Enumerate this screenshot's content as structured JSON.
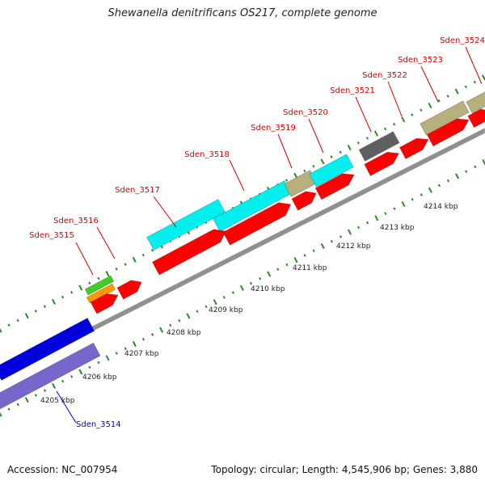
{
  "title": "Shewanella denitrificans OS217, complete genome",
  "footer": {
    "accession": "Accession: NC_007954",
    "summary": "Topology: circular; Length: 4,545,906 bp; Genes: 3,880"
  },
  "colors": {
    "forward_label": "#d40000",
    "reverse_label": "#0000c0",
    "backbone": "#909090",
    "tick": "#2a8a2a",
    "cds": "#ff0000",
    "feature_cyan": "#00f0f0",
    "feature_tan": "#b8b07c",
    "feature_gray": "#606060",
    "feature_green": "#44cc22",
    "feature_orange": "#ff9900",
    "feature_blue": "#0000dd",
    "feature_purple": "#7766cc"
  },
  "ruler": {
    "ticks": [
      "4205 kbp",
      "4206 kbp",
      "4207 kbp",
      "4208 kbp",
      "4209 kbp",
      "4210 kbp",
      "4211 kbp",
      "4212 kbp",
      "4213 kbp",
      "4214 kbp"
    ]
  },
  "genes": [
    {
      "name": "Sden_3514",
      "strand": "reverse"
    },
    {
      "name": "Sden_3515",
      "strand": "forward"
    },
    {
      "name": "Sden_3516",
      "strand": "forward"
    },
    {
      "name": "Sden_3517",
      "strand": "forward"
    },
    {
      "name": "Sden_3518",
      "strand": "forward"
    },
    {
      "name": "Sden_3519",
      "strand": "forward"
    },
    {
      "name": "Sden_3520",
      "strand": "forward"
    },
    {
      "name": "Sden_3521",
      "strand": "forward"
    },
    {
      "name": "Sden_3522",
      "strand": "forward"
    },
    {
      "name": "Sden_3523",
      "strand": "forward"
    },
    {
      "name": "Sden_3524",
      "strand": "forward"
    }
  ]
}
